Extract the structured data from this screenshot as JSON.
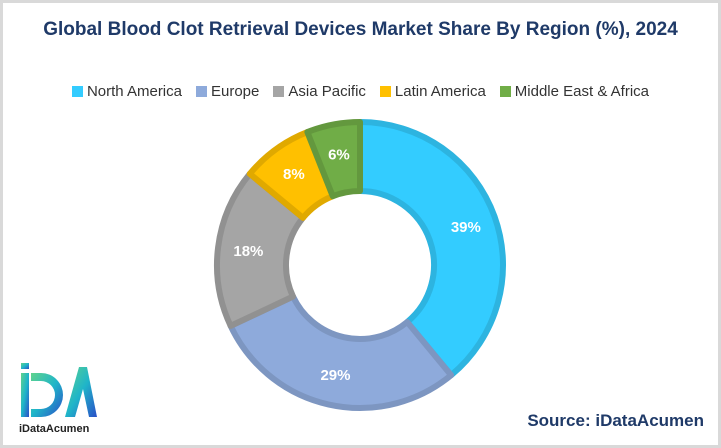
{
  "chart_data": {
    "type": "pie",
    "title": "Global Blood Clot Retrieval Devices Market Share By Region (%), 2024",
    "categories": [
      "North America",
      "Europe",
      "Asia Pacific",
      "Latin America",
      "Middle East & Africa"
    ],
    "values": [
      39,
      29,
      18,
      8,
      6
    ],
    "labels": [
      "39%",
      "29%",
      "18%",
      "8%",
      "6%"
    ],
    "colors": [
      "#33ccff",
      "#8eaadb",
      "#a5a5a5",
      "#ffc000",
      "#70ad47"
    ],
    "legend": "top",
    "donut": true
  },
  "source": "Source: iDataAcumen",
  "logo": {
    "text": "iDataAcumen",
    "mark": "iDA"
  }
}
